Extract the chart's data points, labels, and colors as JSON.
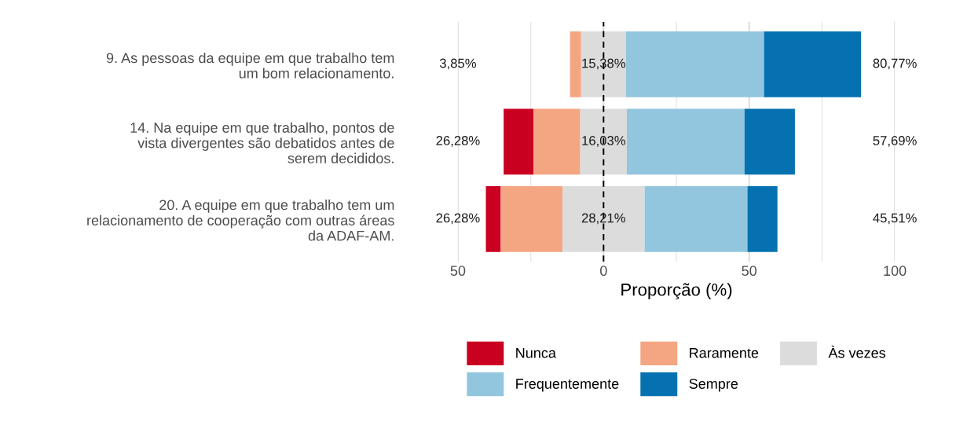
{
  "chart_data": {
    "type": "bar",
    "orientation": "horizontal",
    "xlabel": "Proporção (%)",
    "categories": [
      "9. As pessoas da equipe em que trabalho tem\num bom relacionamento.",
      "14. Na equipe em que trabalho, pontos de\nvista divergentes são debatidos antes de\nserem decididos.",
      "20. A equipe em que trabalho tem um\nrelacionamento de cooperação com outras áreas\nda ADAF-AM."
    ],
    "series": [
      {
        "name": "Nunca",
        "color": "#ca0020",
        "base": [
          null,
          -34.3,
          -40.4
        ],
        "values": [
          null,
          10.3,
          5.1
        ]
      },
      {
        "name": "Raramente",
        "color": "#f4a582",
        "base": [
          -11.5,
          -24.0,
          -35.3
        ],
        "values": [
          3.8,
          16.0,
          21.2
        ]
      },
      {
        "name": "Às vezes",
        "color": "#dcdcdc",
        "base": [
          -7.7,
          -8.0,
          -14.1
        ],
        "values": [
          15.4,
          16.0,
          28.2
        ]
      },
      {
        "name": "Frequentemente",
        "color": "#92c5de",
        "base": [
          7.7,
          8.0,
          14.1
        ],
        "values": [
          47.4,
          40.4,
          35.3
        ]
      },
      {
        "name": "Sempre",
        "color": "#0571b0",
        "base": [
          55.1,
          48.4,
          49.4
        ],
        "values": [
          33.3,
          17.3,
          10.3
        ]
      }
    ],
    "xlim": [
      -50,
      100
    ],
    "xticks": [
      {
        "value": -50,
        "label": "50"
      },
      {
        "value": -25,
        "label": null
      },
      0,
      {
        "value": 25,
        "label": null
      },
      50,
      {
        "value": 75,
        "label": null
      },
      100
    ],
    "grid": "x",
    "legend": "bottom",
    "ref_lines": [
      {
        "axis": "x",
        "value": 0,
        "color": "#000000",
        "line_style": "dashed"
      }
    ],
    "annotations": [
      "3,85%",
      "15,38%",
      "80,77%",
      "26,28%",
      "16,03%",
      "57,69%",
      "26,28%",
      "28,21%",
      "45,51%"
    ]
  }
}
